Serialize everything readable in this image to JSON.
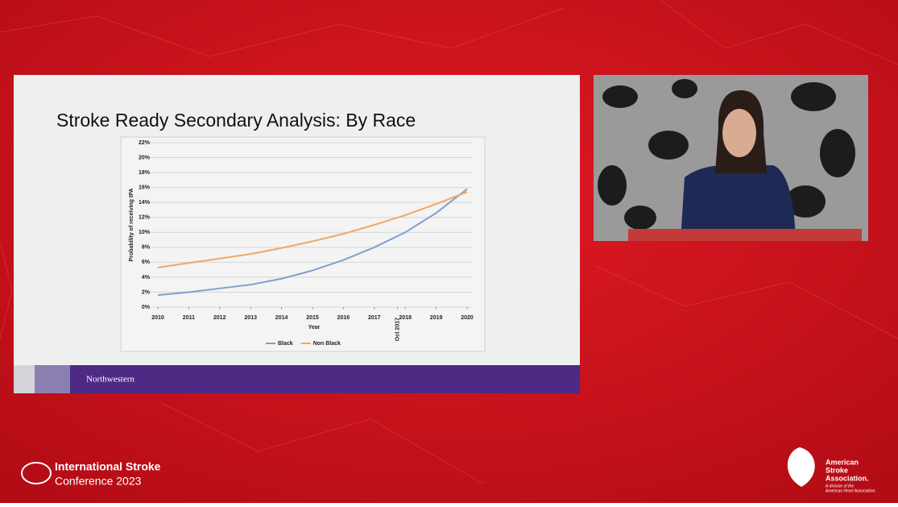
{
  "chart_data": {
    "type": "line",
    "title": "Stroke Ready Secondary Analysis: By Race",
    "x_label": "Year",
    "y_label": "Probability of receiving tPA",
    "x": [
      2010,
      2011,
      2012,
      2013,
      2014,
      2015,
      2016,
      2017,
      2018,
      2019,
      2020
    ],
    "xlim": [
      2010,
      2020
    ],
    "xticks": [
      2010,
      2011,
      2012,
      2013,
      2014,
      2015,
      2016,
      2017,
      {
        "value": 2017.75,
        "label": "Oct 2017"
      },
      2018,
      2019,
      2020
    ],
    "ylim": [
      0,
      22
    ],
    "yticks": [
      {
        "value": 0,
        "label": "0%"
      },
      {
        "value": 2,
        "label": "2%"
      },
      {
        "value": 4,
        "label": "4%"
      },
      {
        "value": 6,
        "label": "6%"
      },
      {
        "value": 8,
        "label": "8%"
      },
      {
        "value": 10,
        "label": "10%"
      },
      {
        "value": 12,
        "label": "12%"
      },
      {
        "value": 14,
        "label": "14%"
      },
      {
        "value": 16,
        "label": "16%"
      },
      {
        "value": 18,
        "label": "18%"
      },
      {
        "value": 20,
        "label": "20%"
      },
      {
        "value": 22,
        "label": "22%"
      }
    ],
    "grid": true,
    "legend": "bottom",
    "series": [
      {
        "name": "Black",
        "color": "#7f9fd0",
        "values": [
          1.6,
          2.0,
          2.5,
          3.0,
          3.8,
          4.9,
          6.3,
          8.0,
          10.0,
          12.6,
          15.8
        ]
      },
      {
        "name": "Non Black",
        "color": "#f0a868",
        "values": [
          5.3,
          5.9,
          6.5,
          7.1,
          7.9,
          8.8,
          9.8,
          11.0,
          12.3,
          13.8,
          15.4
        ]
      }
    ]
  },
  "slide": {
    "footer": "Northwestern"
  },
  "conference": {
    "line1": "International Stroke",
    "line2": "Conference 2023"
  },
  "logo": {
    "name1": "American",
    "name2": "Stroke",
    "name3": "Association.",
    "sub1": "A division of the",
    "sub2": "American Heart Association."
  }
}
